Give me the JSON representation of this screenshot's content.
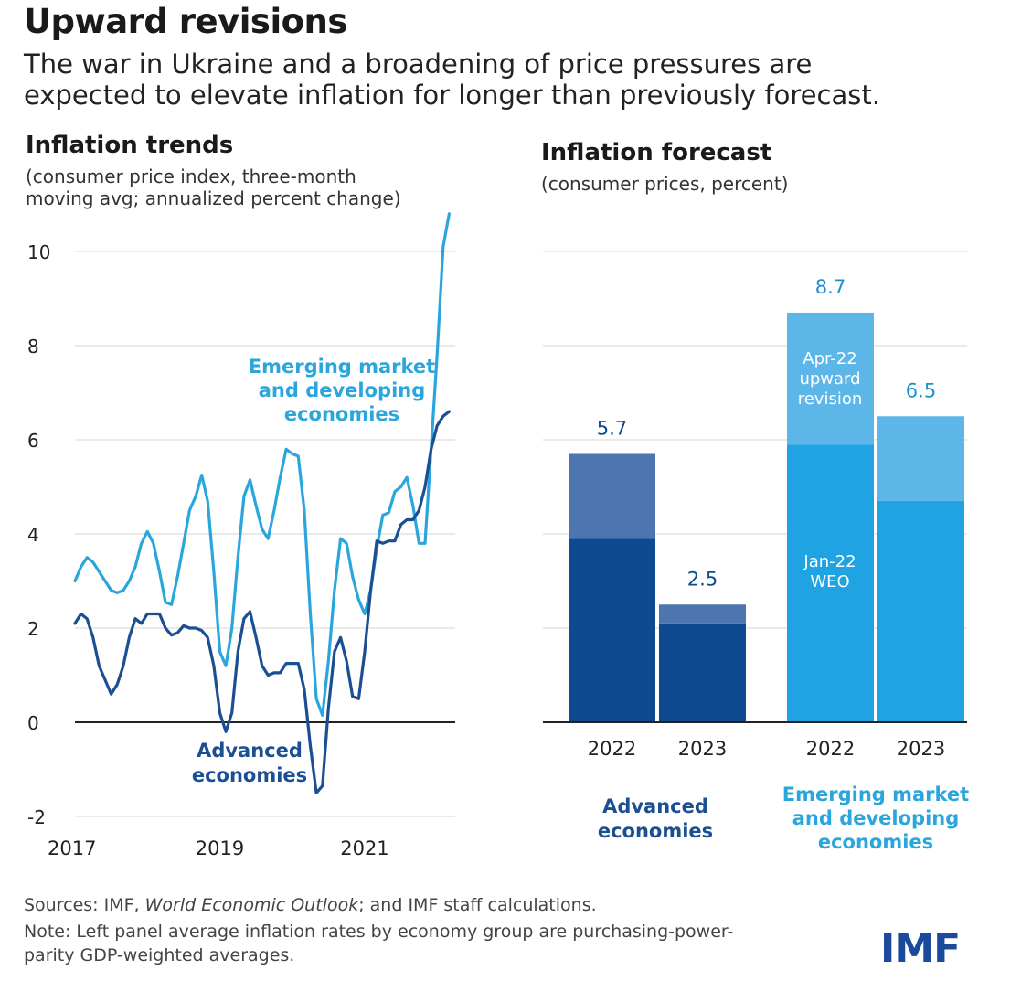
{
  "header": {
    "title": "Upward revisions",
    "subtitle_line1": "The war in Ukraine and a broadening of price pressures are",
    "subtitle_line2": "expected to elevate inflation for longer than previously forecast."
  },
  "colors": {
    "emerging": "#2ba6dd",
    "advanced": "#1b4f91",
    "adv_dark": "#0d4a8f",
    "adv_light": "#4d76b0",
    "emde_dark": "#1fa3e3",
    "emde_light": "#5db6e8",
    "grid": "#d4d4d4",
    "axis": "#222222"
  },
  "chart_data": [
    {
      "type": "line",
      "title": "Inflation trends",
      "note_line1": "(consumer price index, three-month",
      "note_line2": "moving avg; annualized percent change)",
      "ylim": [
        -2,
        10.5
      ],
      "yticks": [
        -2,
        0,
        2,
        4,
        6,
        8,
        10
      ],
      "ytick_labels": [
        "-2",
        "0",
        "2",
        "4",
        "6",
        "8",
        "10"
      ],
      "xlim": [
        2017.0,
        2022.25
      ],
      "xticks": [
        2017,
        2019,
        2021
      ],
      "xtick_labels": [
        "2017",
        "2019",
        "2021"
      ],
      "series": [
        {
          "name": "Emerging market and developing economies",
          "label_lines": [
            "Emerging market",
            "and developing",
            "economies"
          ],
          "color_key": "emerging",
          "x": [
            2017.0,
            2017.083,
            2017.167,
            2017.25,
            2017.333,
            2017.417,
            2017.5,
            2017.583,
            2017.667,
            2017.75,
            2017.833,
            2017.917,
            2018.0,
            2018.083,
            2018.167,
            2018.25,
            2018.333,
            2018.417,
            2018.5,
            2018.583,
            2018.667,
            2018.75,
            2018.833,
            2018.917,
            2019.0,
            2019.083,
            2019.167,
            2019.25,
            2019.333,
            2019.417,
            2019.5,
            2019.583,
            2019.667,
            2019.75,
            2019.833,
            2019.917,
            2020.0,
            2020.083,
            2020.167,
            2020.25,
            2020.333,
            2020.417,
            2020.5,
            2020.583,
            2020.667,
            2020.75,
            2020.833,
            2020.917,
            2021.0,
            2021.083,
            2021.167,
            2021.25,
            2021.333,
            2021.417,
            2021.5,
            2021.583,
            2021.667,
            2021.75,
            2021.833,
            2021.917,
            2022.0,
            2022.083,
            2022.167
          ],
          "y": [
            3.0,
            3.3,
            3.5,
            3.4,
            3.2,
            3.0,
            2.8,
            2.75,
            2.8,
            3.0,
            3.3,
            3.8,
            4.05,
            3.8,
            3.2,
            2.55,
            2.5,
            3.1,
            3.8,
            4.5,
            4.8,
            5.25,
            4.7,
            3.2,
            1.5,
            1.2,
            2.0,
            3.5,
            4.8,
            5.15,
            4.6,
            4.1,
            3.9,
            4.5,
            5.2,
            5.8,
            5.7,
            5.65,
            4.5,
            2.3,
            0.5,
            0.15,
            1.3,
            2.8,
            3.9,
            3.8,
            3.1,
            2.6,
            2.3,
            2.8,
            3.7,
            4.4,
            4.45,
            4.9,
            5.0,
            5.2,
            4.6,
            3.8,
            3.8,
            5.8,
            7.8,
            10.1,
            10.8
          ]
        },
        {
          "name": "Advanced economies",
          "label_lines": [
            "Advanced",
            "economies"
          ],
          "color_key": "advanced",
          "x": [
            2017.0,
            2017.083,
            2017.167,
            2017.25,
            2017.333,
            2017.417,
            2017.5,
            2017.583,
            2017.667,
            2017.75,
            2017.833,
            2017.917,
            2018.0,
            2018.083,
            2018.167,
            2018.25,
            2018.333,
            2018.417,
            2018.5,
            2018.583,
            2018.667,
            2018.75,
            2018.833,
            2018.917,
            2019.0,
            2019.083,
            2019.167,
            2019.25,
            2019.333,
            2019.417,
            2019.5,
            2019.583,
            2019.667,
            2019.75,
            2019.833,
            2019.917,
            2020.0,
            2020.083,
            2020.167,
            2020.25,
            2020.333,
            2020.417,
            2020.5,
            2020.583,
            2020.667,
            2020.75,
            2020.833,
            2020.917,
            2021.0,
            2021.083,
            2021.167,
            2021.25,
            2021.333,
            2021.417,
            2021.5,
            2021.583,
            2021.667,
            2021.75,
            2021.833,
            2021.917,
            2022.0,
            2022.083,
            2022.167
          ],
          "y": [
            2.1,
            2.3,
            2.2,
            1.8,
            1.2,
            0.9,
            0.6,
            0.8,
            1.2,
            1.8,
            2.2,
            2.1,
            2.3,
            2.3,
            2.3,
            2.0,
            1.85,
            1.9,
            2.05,
            2.0,
            2.0,
            1.95,
            1.8,
            1.2,
            0.2,
            -0.2,
            0.2,
            1.5,
            2.2,
            2.35,
            1.8,
            1.2,
            1.0,
            1.05,
            1.05,
            1.25,
            1.25,
            1.25,
            0.7,
            -0.5,
            -1.5,
            -1.35,
            0.3,
            1.5,
            1.8,
            1.3,
            0.55,
            0.5,
            1.5,
            2.8,
            3.85,
            3.8,
            3.85,
            3.85,
            4.2,
            4.3,
            4.3,
            4.5,
            5.0,
            5.8,
            6.3,
            6.5,
            6.6
          ]
        }
      ]
    },
    {
      "type": "bar",
      "stacked": true,
      "title": "Inflation forecast",
      "note": "(consumer prices, percent)",
      "ylim": [
        0,
        10.2
      ],
      "categories": [
        "2022",
        "2023",
        "2022",
        "2023"
      ],
      "groups": [
        {
          "name": "Advanced economies",
          "label_lines": [
            "Advanced",
            "economies"
          ],
          "color_key": "advanced",
          "indices": [
            0,
            1
          ]
        },
        {
          "name": "Emerging market and developing economies",
          "label_lines": [
            "Emerging market",
            "and developing",
            "economies"
          ],
          "color_key": "emerging",
          "indices": [
            2,
            3
          ]
        }
      ],
      "series": [
        {
          "name": "Jan-22 WEO",
          "label_lines": [
            "Jan-22",
            "WEO"
          ],
          "values": [
            3.9,
            2.1,
            5.9,
            4.7
          ]
        },
        {
          "name": "Apr-22 upward revision",
          "label_lines": [
            "Apr-22",
            "upward",
            "revision"
          ],
          "values": [
            1.8,
            0.4,
            2.8,
            1.8
          ]
        }
      ],
      "totals": [
        5.7,
        2.5,
        8.7,
        6.5
      ],
      "total_labels": [
        "5.7",
        "2.5",
        "8.7",
        "6.5"
      ]
    }
  ],
  "footer": {
    "source_prefix": "Sources: IMF, ",
    "source_italic": "World Economic Outlook",
    "source_suffix": "; and IMF staff calculations.",
    "note_line1": "Note: Left panel average inflation rates by economy group are purchasing-power-",
    "note_line2": "parity GDP-weighted averages.",
    "logo": "IMF"
  }
}
